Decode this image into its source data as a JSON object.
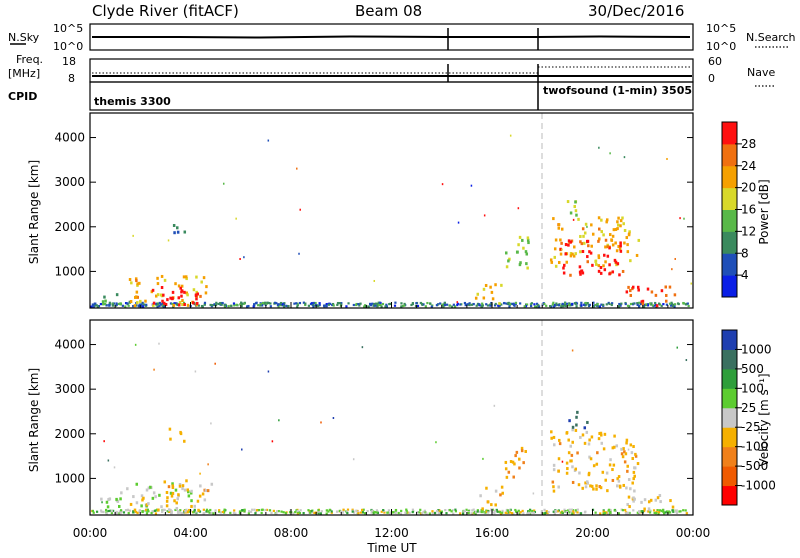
{
  "header": {
    "station": "Clyde River (fitACF)",
    "beam": "Beam 08",
    "date": "30/Dec/2016"
  },
  "noise_panel": {
    "left_label": "N.Sky",
    "right_label": "N.Search",
    "y_ticks": [
      "10^5",
      "10^0"
    ],
    "right_ticks": [
      "10^5",
      "10^0"
    ]
  },
  "freq_panel": {
    "left_label_1": "Freq.",
    "left_label_2": "[MHz]",
    "left_ticks": [
      "18",
      "8"
    ],
    "right_label": "Nave",
    "right_ticks": [
      "60",
      "0"
    ]
  },
  "cpid_panel": {
    "label": "CPID",
    "programs": [
      {
        "name": "themis 3300",
        "start_hour": 0,
        "end_hour": 18
      },
      {
        "name": "twofsound (1-min) 3505",
        "start_hour": 18,
        "end_hour": 24
      }
    ]
  },
  "axes": {
    "ylabel": "Slant Range [km]",
    "xlabel": "Time UT",
    "x_ticks": [
      "00:00",
      "04:00",
      "08:00",
      "12:00",
      "16:00",
      "20:00",
      "00:00"
    ],
    "y_ticks": [
      "1000",
      "2000",
      "3000",
      "4000"
    ]
  },
  "colors": {
    "power_scale": [
      "#0a1fe6",
      "#1f4fb8",
      "#3a8a5e",
      "#58b848",
      "#d8d82a",
      "#f5a000",
      "#f07010",
      "#ff1010"
    ],
    "velocity_scale": [
      "#ff0000",
      "#f05a00",
      "#f0801a",
      "#f5b000",
      "#c8c8c8",
      "#5ccc30",
      "#2e9e3a",
      "#3a7060",
      "#1f3fb0"
    ]
  },
  "power_colorbar": {
    "label": "Power [dB]",
    "ticks": [
      "4",
      "8",
      "12",
      "16",
      "20",
      "24",
      "28"
    ]
  },
  "velocity_colorbar": {
    "label": "Velocity [m s⁻¹]",
    "ticks": [
      "-1000",
      "-500",
      "-100",
      "-25",
      "25",
      "100",
      "500",
      "1000"
    ]
  },
  "chart_data": [
    {
      "type": "heatmap",
      "title": "Power",
      "xlabel": "Time UT",
      "ylabel": "Slant Range [km]",
      "xlim": [
        0,
        24
      ],
      "ylim": [
        180,
        4550
      ],
      "colorbar_range": [
        0,
        30
      ],
      "regions": [
        {
          "t0": 0.3,
          "t1": 1.6,
          "r0": 200,
          "r1": 480,
          "value": 10
        },
        {
          "t0": 1.4,
          "t1": 4.6,
          "r0": 220,
          "r1": 900,
          "value": 20
        },
        {
          "t0": 2.2,
          "t1": 4.3,
          "r0": 230,
          "r1": 640,
          "value": 29
        },
        {
          "t0": 2.8,
          "t1": 4.2,
          "r0": 240,
          "r1": 460,
          "value": 30
        },
        {
          "t0": 3.1,
          "t1": 3.8,
          "r0": 1800,
          "r1": 2100,
          "value": 8
        },
        {
          "t0": 15.3,
          "t1": 16.4,
          "r0": 260,
          "r1": 700,
          "value": 20
        },
        {
          "t0": 16.5,
          "t1": 17.5,
          "r0": 1000,
          "r1": 1800,
          "value": 14
        },
        {
          "t0": 18.3,
          "t1": 21.8,
          "r0": 1100,
          "r1": 2200,
          "value": 20
        },
        {
          "t0": 18.6,
          "t1": 21.2,
          "r0": 900,
          "r1": 1700,
          "value": 28
        },
        {
          "t0": 18.7,
          "t1": 19.5,
          "r0": 2200,
          "r1": 2600,
          "value": 14
        },
        {
          "t0": 21.3,
          "t1": 23.3,
          "r0": 200,
          "r1": 650,
          "value": 26
        }
      ]
    },
    {
      "type": "heatmap",
      "title": "Velocity",
      "xlabel": "Time UT",
      "ylabel": "Slant Range [km]",
      "xlim": [
        0,
        24
      ],
      "ylim": [
        180,
        4550
      ],
      "colorbar_range": [
        -1000,
        1000
      ],
      "regions": [
        {
          "t0": 0.4,
          "t1": 1.4,
          "r0": 200,
          "r1": 700,
          "value": 50
        },
        {
          "t0": 1.4,
          "t1": 4.0,
          "r0": 220,
          "r1": 1000,
          "value": 0
        },
        {
          "t0": 3.0,
          "t1": 4.8,
          "r0": 230,
          "r1": 900,
          "value": -200
        },
        {
          "t0": 3.1,
          "t1": 3.8,
          "r0": 1800,
          "r1": 2100,
          "value": -150
        },
        {
          "t0": 15.4,
          "t1": 16.4,
          "r0": 260,
          "r1": 800,
          "value": -200
        },
        {
          "t0": 16.5,
          "t1": 17.5,
          "r0": 1000,
          "r1": 1700,
          "value": -250
        },
        {
          "t0": 18.3,
          "t1": 21.8,
          "r0": 700,
          "r1": 2100,
          "value": -200
        },
        {
          "t0": 19.0,
          "t1": 19.8,
          "r0": 2100,
          "r1": 2500,
          "value": 800
        },
        {
          "t0": 21.3,
          "t1": 23.3,
          "r0": 200,
          "r1": 650,
          "value": -150
        }
      ]
    }
  ]
}
